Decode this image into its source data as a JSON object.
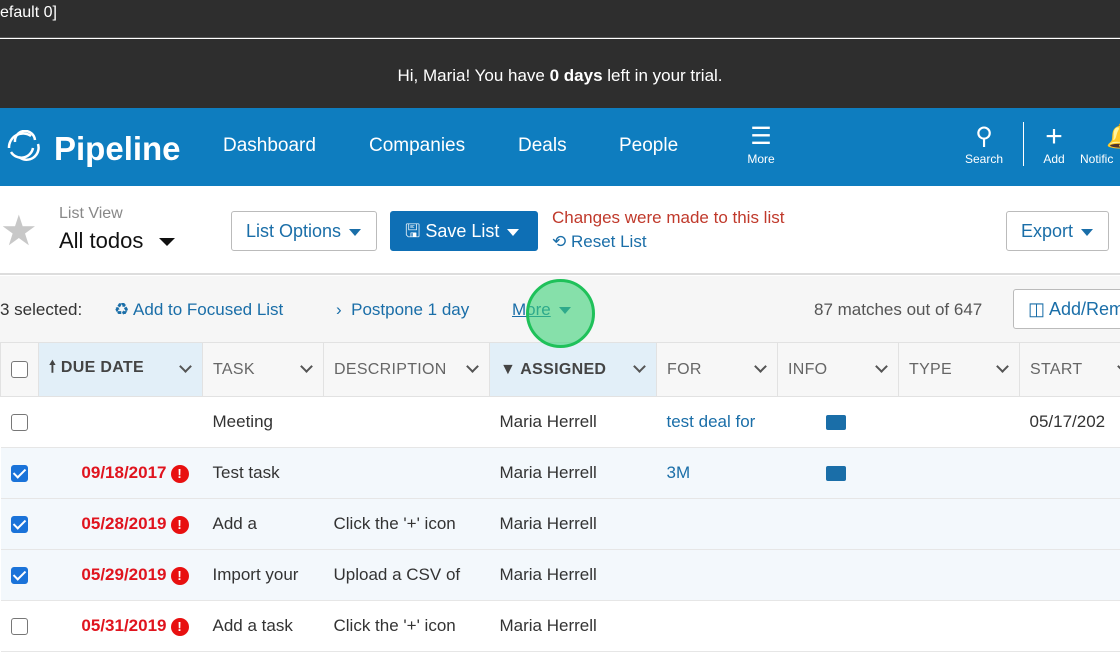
{
  "topbar": {
    "text": "efault 0]"
  },
  "trial": {
    "prefix": "Hi, Maria! You have ",
    "bold": "0 days",
    "suffix": " left in your trial."
  },
  "nav": {
    "brand": "Pipeline",
    "links": [
      "Dashboard",
      "Companies",
      "Deals",
      "People"
    ],
    "more": "More",
    "search": "Search",
    "add": "Add",
    "notifications": "Notific"
  },
  "toolbar": {
    "list_view_label": "List View",
    "list_name": "All todos",
    "list_options": "List Options",
    "save_list": "Save List",
    "changes_notice": "Changes were made to this list",
    "reset_list": "Reset List",
    "export": "Export"
  },
  "actions": {
    "selected": "3 selected:",
    "add_focused": "Add to Focused List",
    "postpone": "Postpone 1 day",
    "more": "More",
    "matches": "87 matches out of 647",
    "add_remove": "Add/Rem"
  },
  "table": {
    "columns": [
      "DUE DATE",
      "TASK",
      "DESCRIPTION",
      "ASSIGNED",
      "FOR",
      "INFO",
      "TYPE",
      "START"
    ],
    "rows": [
      {
        "checked": false,
        "due": "",
        "task": "Meeting",
        "description": "",
        "assigned": "Maria Herrell",
        "for": "test deal for",
        "info": true,
        "start": "05/17/202"
      },
      {
        "checked": true,
        "due": "09/18/2017",
        "task": "Test task",
        "description": "",
        "assigned": "Maria Herrell",
        "for": "3M",
        "info": true,
        "start": ""
      },
      {
        "checked": true,
        "due": "05/28/2019",
        "task": "Add a",
        "description": "Click the '+' icon",
        "assigned": "Maria Herrell",
        "for": "",
        "info": false,
        "start": ""
      },
      {
        "checked": true,
        "due": "05/29/2019",
        "task": "Import your",
        "description": "Upload a CSV of",
        "assigned": "Maria Herrell",
        "for": "",
        "info": false,
        "start": ""
      },
      {
        "checked": false,
        "due": "05/31/2019",
        "task": "Add a task",
        "description": "Click the '+' icon",
        "assigned": "Maria Herrell",
        "for": "",
        "info": false,
        "start": ""
      }
    ]
  },
  "colors": {
    "nav": "#0e7dbf",
    "accent": "#1a6ea8",
    "overdue": "#e0141e",
    "notice": "#c0392b"
  }
}
